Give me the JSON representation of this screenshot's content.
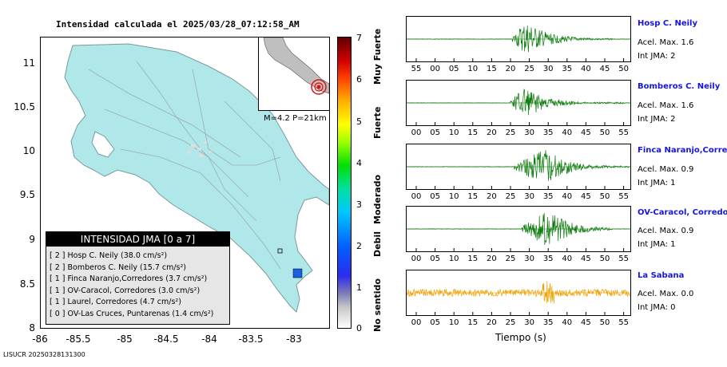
{
  "map": {
    "title": "Intensidad calculada el 2025/03/28_07:12:58_AM",
    "yticks": [
      "11",
      "10.5",
      "10",
      "9.5",
      "9",
      "8.5",
      "8"
    ],
    "xticks": [
      "-86",
      "-85.5",
      "-85",
      "-84.5",
      "-84",
      "-83.5",
      "-83"
    ],
    "inset_label": "M=4.2 P=21km",
    "legend_title": "INTENSIDAD JMA [0 a 7]",
    "legend": [
      "[ 2 ]  Hosp C. Neily (38.0 cm/s²)",
      "[ 2 ]  Bomberos C. Neily (15.7 cm/s²)",
      "[ 1 ]  Finca Naranjo,Corredores (3.7 cm/s²)",
      "[ 1 ]  OV-Caracol, Corredores (3.0 cm/s²)",
      "[ 1 ]  Laurel, Corredores (4.7 cm/s²)",
      "[ 0 ]  OV-Las Cruces, Puntarenas (1.4 cm/s²)"
    ],
    "colorbar_ticks": [
      "7",
      "6",
      "5",
      "4",
      "3",
      "2",
      "1",
      "0"
    ],
    "colorbar_words": [
      "Muy Fuerte",
      "Fuerte",
      "Moderado",
      "Debil",
      "No sentido"
    ],
    "colors": {
      "land": "#b0e8ea",
      "water": "#ffffff",
      "epicenter": "#e01010",
      "station": "#1a5fe0"
    }
  },
  "chart_data": [
    {
      "type": "line",
      "name": "Hosp C. Neily",
      "accel_label": "Acel. Max. 1.6",
      "int_label": "Int JMA: 2",
      "x_ticks": [
        "55",
        "00",
        "05",
        "10",
        "15",
        "20",
        "25",
        "30",
        "35",
        "40",
        "45",
        "50"
      ],
      "x_start_tick_index": 0,
      "signal": {
        "onset_tick": 25.5,
        "peak_tick": 29,
        "end_tick": 52,
        "amp": 0.85
      },
      "color": "#0a7a0a"
    },
    {
      "type": "line",
      "name": "Bomberos C. Neily",
      "accel_label": "Acel. Max. 1.6",
      "int_label": "Int JMA: 2",
      "x_ticks": [
        "00",
        "05",
        "10",
        "15",
        "20",
        "25",
        "30",
        "35",
        "40",
        "45",
        "50",
        "55"
      ],
      "signal": {
        "onset_tick": 25,
        "peak_tick": 28.5,
        "end_tick": 55,
        "amp": 0.8
      },
      "color": "#0a7a0a"
    },
    {
      "type": "line",
      "name": "Finca Naranjo,Corredores",
      "accel_label": "Acel. Max. 0.9",
      "int_label": "Int JMA: 1",
      "x_ticks": [
        "00",
        "05",
        "10",
        "15",
        "20",
        "25",
        "30",
        "35",
        "40",
        "45",
        "50",
        "55"
      ],
      "signal": {
        "onset_tick": 26,
        "peak_tick": 34,
        "end_tick": 57,
        "amp": 0.9
      },
      "color": "#0a7a0a"
    },
    {
      "type": "line",
      "name": "OV-Caracol, Corredores",
      "accel_label": "Acel. Max. 0.9",
      "int_label": "Int JMA: 1",
      "x_ticks": [
        "00",
        "05",
        "10",
        "15",
        "20",
        "25",
        "30",
        "35",
        "40",
        "45",
        "50",
        "55"
      ],
      "signal": {
        "onset_tick": 28,
        "peak_tick": 35,
        "end_tick": 52,
        "amp": 0.9
      },
      "color": "#0a7a0a"
    },
    {
      "type": "line",
      "name": "La Sabana",
      "accel_label": "Acel. Max. 0.0",
      "int_label": "Int JMA: 0",
      "x_ticks": [
        "00",
        "05",
        "10",
        "15",
        "20",
        "25",
        "30",
        "35",
        "40",
        "45",
        "50",
        "55"
      ],
      "signal": {
        "onset_tick": 0,
        "peak_tick": 35,
        "end_tick": 57,
        "amp": 0.7,
        "noise": true
      },
      "color": "#f0a000",
      "xlabel": "Tiempo (s)"
    }
  ],
  "footer": "LISUCR 20250328131300"
}
